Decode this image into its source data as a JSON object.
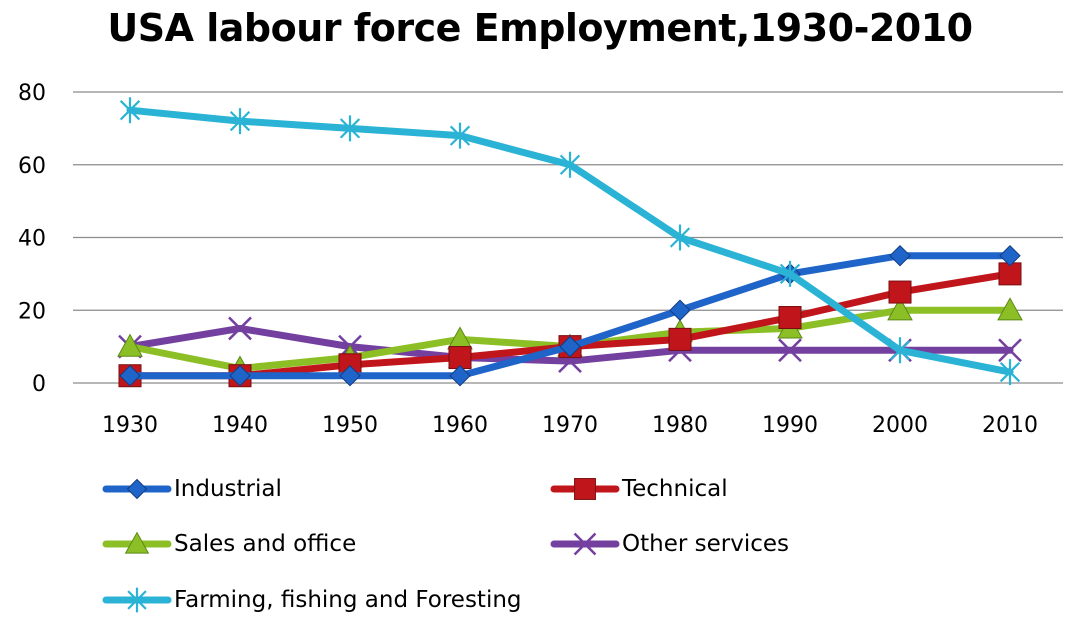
{
  "chart_data": {
    "type": "line",
    "title": "USA labour force Employment,1930-2010",
    "xlabel": "",
    "ylabel": "",
    "ylim": [
      0,
      80
    ],
    "yticks": [
      0,
      20,
      40,
      60,
      80
    ],
    "grid": true,
    "legend_position": "bottom",
    "categories": [
      "1930",
      "1940",
      "1950",
      "1960",
      "1970",
      "1980",
      "1990",
      "2000",
      "2010"
    ],
    "series": [
      {
        "name": "Industrial",
        "color": "#1f64c8",
        "marker": "diamond",
        "values": [
          2,
          2,
          2,
          2,
          10,
          20,
          30,
          35,
          35
        ]
      },
      {
        "name": "Technical",
        "color": "#c0161b",
        "marker": "square",
        "values": [
          2,
          2,
          5,
          7,
          10,
          12,
          18,
          25,
          30
        ]
      },
      {
        "name": "Sales and office",
        "color": "#8cbf26",
        "marker": "triangle",
        "values": [
          10,
          4,
          7,
          12,
          10,
          14,
          15,
          20,
          20
        ]
      },
      {
        "name": "Other services",
        "color": "#7440a0",
        "marker": "x",
        "values": [
          10,
          15,
          10,
          7,
          6,
          9,
          9,
          9,
          9
        ]
      },
      {
        "name": "Farming, fishing and Foresting",
        "color": "#2bb3d6",
        "marker": "star",
        "values": [
          75,
          72,
          70,
          68,
          60,
          40,
          30,
          9,
          3
        ]
      }
    ]
  }
}
